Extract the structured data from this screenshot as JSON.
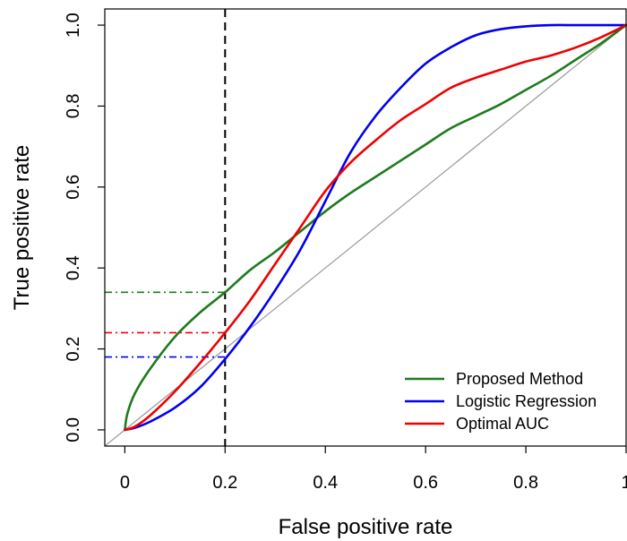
{
  "chart_data": {
    "type": "line",
    "xlabel": "False positive rate",
    "ylabel": "True positive rate",
    "xlim": [
      -0.04,
      1.0
    ],
    "ylim": [
      -0.04,
      1.04
    ],
    "x_ticks": [
      0,
      0.2,
      0.4,
      0.6,
      0.8,
      1
    ],
    "x_tick_labels": [
      "0",
      "0.2",
      "0.4",
      "0.6",
      "0.8",
      "1"
    ],
    "y_ticks": [
      0.0,
      0.2,
      0.4,
      0.6,
      0.8,
      1.0
    ],
    "y_tick_labels": [
      "0.0",
      "0.2",
      "0.4",
      "0.6",
      "0.8",
      "1.0"
    ],
    "legend_position": "bottom-right",
    "series": [
      {
        "name": "Proposed Method",
        "color": "#1e7b1e",
        "x": [
          0,
          0.005,
          0.02,
          0.05,
          0.1,
          0.15,
          0.2,
          0.25,
          0.3,
          0.35,
          0.4,
          0.45,
          0.5,
          0.55,
          0.6,
          0.65,
          0.7,
          0.75,
          0.8,
          0.85,
          0.9,
          0.95,
          1.0
        ],
        "y": [
          0,
          0.04,
          0.09,
          0.15,
          0.23,
          0.29,
          0.34,
          0.395,
          0.44,
          0.49,
          0.54,
          0.585,
          0.625,
          0.665,
          0.705,
          0.745,
          0.775,
          0.805,
          0.84,
          0.875,
          0.915,
          0.955,
          1.0
        ]
      },
      {
        "name": "Logistic Regression",
        "color": "#0000ee",
        "x": [
          0,
          0.02,
          0.05,
          0.1,
          0.15,
          0.2,
          0.25,
          0.3,
          0.35,
          0.4,
          0.45,
          0.5,
          0.55,
          0.6,
          0.65,
          0.7,
          0.75,
          0.8,
          0.85,
          0.9,
          0.95,
          1.0
        ],
        "y": [
          0,
          0.005,
          0.02,
          0.055,
          0.105,
          0.175,
          0.255,
          0.345,
          0.445,
          0.565,
          0.685,
          0.775,
          0.845,
          0.905,
          0.945,
          0.975,
          0.99,
          0.997,
          1.0,
          1.0,
          1.0,
          1.0
        ]
      },
      {
        "name": "Optimal AUC",
        "color": "#ee0000",
        "x": [
          0,
          0.02,
          0.05,
          0.1,
          0.15,
          0.2,
          0.25,
          0.3,
          0.35,
          0.4,
          0.45,
          0.5,
          0.55,
          0.6,
          0.65,
          0.7,
          0.75,
          0.8,
          0.85,
          0.9,
          0.95,
          1.0
        ],
        "y": [
          0,
          0.008,
          0.035,
          0.095,
          0.165,
          0.24,
          0.32,
          0.41,
          0.5,
          0.59,
          0.66,
          0.715,
          0.765,
          0.805,
          0.845,
          0.87,
          0.89,
          0.91,
          0.925,
          0.945,
          0.97,
          1.0
        ]
      }
    ],
    "diagonal": {
      "color": "#999999",
      "x": [
        -0.04,
        1.0
      ],
      "y": [
        -0.04,
        1.0
      ]
    },
    "vertical_reference": {
      "x": 0.2,
      "style": "dashed",
      "color": "#000000"
    },
    "horizontal_references": [
      {
        "y": 0.34,
        "color": "#1e7b1e",
        "series": "Proposed Method"
      },
      {
        "y": 0.24,
        "color": "#ee0000",
        "series": "Optimal AUC"
      },
      {
        "y": 0.18,
        "color": "#0000ee",
        "series": "Logistic Regression"
      }
    ]
  }
}
